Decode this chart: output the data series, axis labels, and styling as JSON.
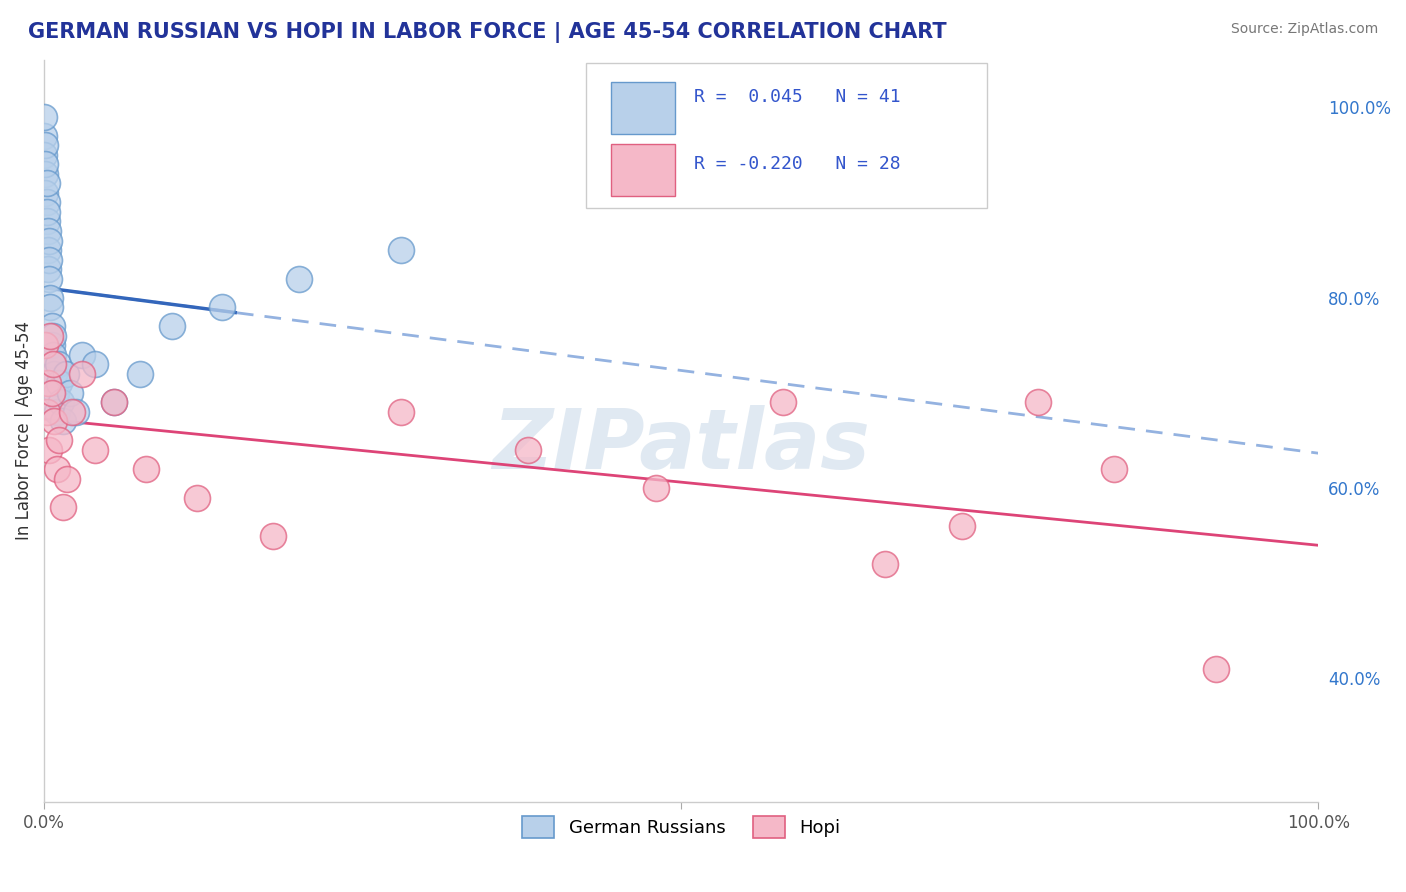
{
  "title": "GERMAN RUSSIAN VS HOPI IN LABOR FORCE | AGE 45-54 CORRELATION CHART",
  "source": "Source: ZipAtlas.com",
  "ylabel": "In Labor Force | Age 45-54",
  "xlim": [
    0.0,
    1.0
  ],
  "ylim": [
    0.27,
    1.05
  ],
  "y_tick_vals_right": [
    0.4,
    0.6,
    0.8,
    1.0
  ],
  "y_tick_labels_right": [
    "40.0%",
    "60.0%",
    "80.0%",
    "100.0%"
  ],
  "legend_r_blue": " 0.045",
  "legend_n_blue": "41",
  "legend_r_pink": "-0.220",
  "legend_n_pink": "28",
  "blue_fill": "#b8d0ea",
  "blue_edge": "#6699cc",
  "pink_fill": "#f5b8c8",
  "pink_edge": "#e06080",
  "blue_line_color": "#3366bb",
  "pink_line_color": "#dd4477",
  "blue_dash_color": "#88aadd",
  "watermark_color": "#c8d8e8",
  "grid_color": "#dddddd",
  "background_color": "#ffffff",
  "title_color": "#223399",
  "source_color": "#777777",
  "label_color": "#555555",
  "german_russian_x": [
    0.0,
    0.0,
    0.0,
    0.001,
    0.001,
    0.001,
    0.001,
    0.002,
    0.002,
    0.002,
    0.002,
    0.003,
    0.003,
    0.003,
    0.004,
    0.004,
    0.004,
    0.005,
    0.005,
    0.006,
    0.006,
    0.007,
    0.007,
    0.008,
    0.009,
    0.01,
    0.011,
    0.012,
    0.013,
    0.015,
    0.017,
    0.02,
    0.025,
    0.03,
    0.04,
    0.055,
    0.075,
    0.1,
    0.14,
    0.2,
    0.28
  ],
  "german_russian_y": [
    0.97,
    0.95,
    0.99,
    0.93,
    0.91,
    0.96,
    0.94,
    0.9,
    0.88,
    0.92,
    0.89,
    0.87,
    0.85,
    0.83,
    0.86,
    0.84,
    0.82,
    0.8,
    0.79,
    0.77,
    0.75,
    0.76,
    0.74,
    0.72,
    0.7,
    0.68,
    0.73,
    0.71,
    0.69,
    0.67,
    0.72,
    0.7,
    0.68,
    0.74,
    0.73,
    0.69,
    0.72,
    0.77,
    0.79,
    0.82,
    0.85
  ],
  "hopi_x": [
    0.001,
    0.002,
    0.003,
    0.004,
    0.005,
    0.006,
    0.007,
    0.008,
    0.01,
    0.012,
    0.015,
    0.018,
    0.022,
    0.03,
    0.04,
    0.055,
    0.08,
    0.12,
    0.18,
    0.28,
    0.38,
    0.48,
    0.58,
    0.66,
    0.72,
    0.78,
    0.84,
    0.92
  ],
  "hopi_y": [
    0.75,
    0.68,
    0.71,
    0.64,
    0.76,
    0.7,
    0.73,
    0.67,
    0.62,
    0.65,
    0.58,
    0.61,
    0.68,
    0.72,
    0.64,
    0.69,
    0.62,
    0.59,
    0.55,
    0.68,
    0.64,
    0.6,
    0.69,
    0.52,
    0.56,
    0.69,
    0.62,
    0.41
  ]
}
